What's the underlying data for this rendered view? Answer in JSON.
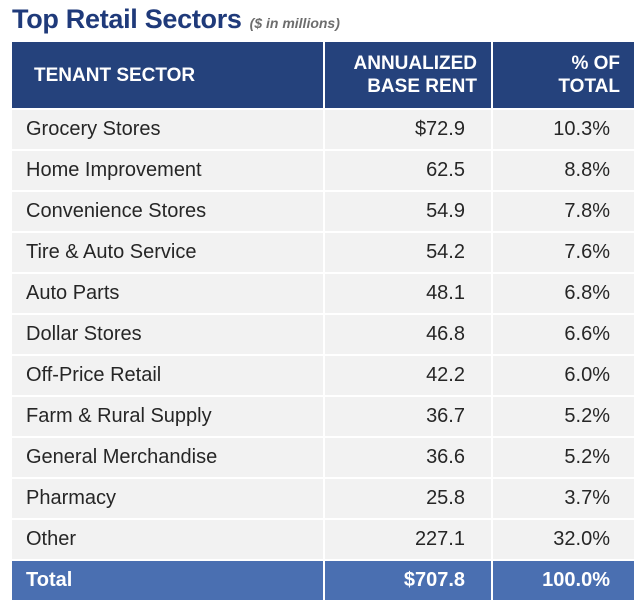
{
  "chart_data": {
    "type": "table",
    "title": "Top Retail Sectors",
    "subtitle": "($ in millions)",
    "columns": [
      "TENANT SECTOR",
      "ANNUALIZED BASE RENT",
      "% OF TOTAL"
    ],
    "rows": [
      {
        "sector": "Grocery Stores",
        "rent": "$72.9",
        "pct": "10.3%"
      },
      {
        "sector": "Home Improvement",
        "rent": "62.5",
        "pct": "8.8%"
      },
      {
        "sector": "Convenience Stores",
        "rent": "54.9",
        "pct": "7.8%"
      },
      {
        "sector": "Tire & Auto Service",
        "rent": "54.2",
        "pct": "7.6%"
      },
      {
        "sector": "Auto Parts",
        "rent": "48.1",
        "pct": "6.8%"
      },
      {
        "sector": "Dollar Stores",
        "rent": "46.8",
        "pct": "6.6%"
      },
      {
        "sector": "Off-Price Retail",
        "rent": "42.2",
        "pct": "6.0%"
      },
      {
        "sector": "Farm & Rural Supply",
        "rent": "36.7",
        "pct": "5.2%"
      },
      {
        "sector": "General Merchandise",
        "rent": "36.6",
        "pct": "5.2%"
      },
      {
        "sector": "Pharmacy",
        "rent": "25.8",
        "pct": "3.7%"
      },
      {
        "sector": "Other",
        "rent": "227.1",
        "pct": "32.0%"
      }
    ],
    "total": {
      "label": "Total",
      "rent": "$707.8",
      "pct": "100.0%"
    }
  },
  "header": {
    "col1": "TENANT SECTOR",
    "col2_line1": "ANNUALIZED",
    "col2_line2": "BASE RENT",
    "col3_line1": "% OF",
    "col3_line2": "TOTAL"
  },
  "colors": {
    "title": "#1f3a7a",
    "header_bg": "#25427c",
    "row_bg": "#f2f2f2",
    "total_bg": "#4a6fb1"
  }
}
